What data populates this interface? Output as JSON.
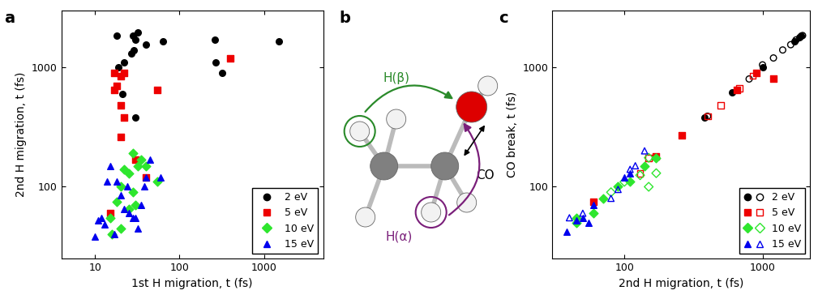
{
  "chart_data": [
    {
      "panel_label": "a",
      "type": "scatter",
      "log": true,
      "xlabel": "1st H migration, t (fs)",
      "ylabel": "2nd H migration, t (fs)",
      "xlim": [
        4,
        5000
      ],
      "ylim": [
        25,
        3000
      ],
      "xticks": [
        10,
        100,
        1000
      ],
      "yticks": [
        100,
        1000
      ],
      "legend": "lower right",
      "series": [
        {
          "name": "2 eV",
          "color": "#000000",
          "marker": "circle",
          "x": [
            18,
            28,
            32,
            30,
            40,
            63,
            19,
            22,
            27,
            29,
            21,
            30,
            260,
            270,
            320,
            1500
          ],
          "y": [
            1850,
            1850,
            1950,
            1700,
            1550,
            1650,
            1000,
            1100,
            1300,
            1400,
            600,
            380,
            1700,
            1100,
            900,
            1650
          ]
        },
        {
          "name": "5 eV",
          "color": "#ee0000",
          "marker": "square",
          "x": [
            400,
            17,
            20,
            22,
            17,
            18,
            20,
            22,
            20,
            55,
            30,
            40,
            15
          ],
          "y": [
            1200,
            900,
            850,
            900,
            650,
            700,
            480,
            380,
            260,
            650,
            170,
            120,
            60
          ]
        },
        {
          "name": "10 eV",
          "color": "#2ee62e",
          "marker": "diamond",
          "x": [
            28,
            32,
            35,
            55,
            25,
            22,
            20,
            28,
            30,
            18,
            20,
            15,
            16,
            25,
            40
          ],
          "y": [
            190,
            150,
            170,
            110,
            130,
            140,
            100,
            90,
            70,
            75,
            45,
            55,
            40,
            65,
            150
          ]
        },
        {
          "name": "15 eV",
          "color": "#0000ee",
          "marker": "triangle",
          "x": [
            10,
            12,
            11,
            13,
            15,
            14,
            18,
            20,
            25,
            28,
            30,
            35,
            45,
            40,
            60,
            32,
            22,
            17,
            24,
            38
          ],
          "y": [
            38,
            55,
            52,
            48,
            150,
            110,
            110,
            85,
            60,
            55,
            55,
            70,
            170,
            120,
            120,
            45,
            65,
            40,
            100,
            100
          ]
        }
      ]
    },
    {
      "panel_label": "c",
      "type": "scatter",
      "log": true,
      "xlabel": "2nd H migration, t (fs)",
      "ylabel": "CO break, t (fs)",
      "xlim": [
        30,
        2200
      ],
      "ylim": [
        25,
        3000
      ],
      "xticks": [
        100,
        1000
      ],
      "yticks": [
        100,
        1000
      ],
      "legend": "lower right",
      "series": [
        {
          "name": "2 eV",
          "color": "#000000",
          "marker": "circle",
          "x": [
            380,
            600,
            900,
            1000,
            1700,
            1900,
            1850
          ],
          "y": [
            380,
            620,
            900,
            1000,
            1650,
            1850,
            1800
          ],
          "open_x": [
            400,
            800,
            1000,
            1200,
            1400,
            1600,
            1750,
            1950
          ],
          "open_y": [
            390,
            800,
            1050,
            1200,
            1400,
            1550,
            1700,
            1850
          ]
        },
        {
          "name": "5 eV",
          "color": "#ee0000",
          "marker": "square",
          "x": [
            60,
            260,
            650,
            900,
            1200,
            170
          ],
          "y": [
            75,
            270,
            650,
            900,
            800,
            180
          ],
          "open_x": [
            130,
            400,
            500,
            850,
            680,
            150
          ],
          "open_y": [
            130,
            390,
            480,
            850,
            670,
            175
          ]
        },
        {
          "name": "10 eV",
          "color": "#2ee62e",
          "marker": "diamond",
          "x": [
            45,
            60,
            70,
            90,
            110,
            140,
            170,
            45
          ],
          "y": [
            55,
            60,
            80,
            100,
            110,
            150,
            175,
            50
          ],
          "open_x": [
            80,
            100,
            130,
            150,
            170,
            150
          ],
          "open_y": [
            90,
            110,
            125,
            100,
            130,
            175
          ]
        },
        {
          "name": "15 eV",
          "color": "#0000ee",
          "marker": "triangle",
          "x": [
            38,
            45,
            50,
            55,
            100,
            110,
            60
          ],
          "y": [
            42,
            52,
            55,
            50,
            120,
            130,
            70
          ],
          "open_x": [
            40,
            50,
            80,
            120,
            140,
            90,
            110
          ],
          "open_y": [
            55,
            60,
            80,
            150,
            200,
            95,
            140
          ]
        }
      ]
    }
  ],
  "diagram": {
    "panel_label": "b",
    "h_beta": "H(β)",
    "h_alpha": "H(α)",
    "bond": "CO"
  }
}
